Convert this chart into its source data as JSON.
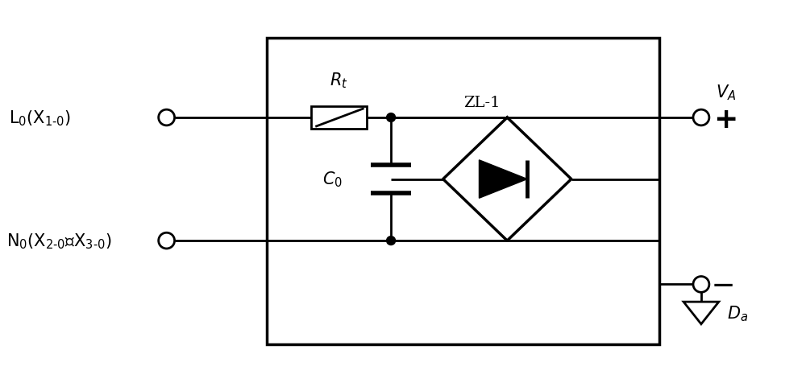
{
  "bg_color": "#ffffff",
  "line_color": "#000000",
  "line_width": 2.0,
  "fig_width": 10.0,
  "fig_height": 4.56,
  "dpi": 100
}
